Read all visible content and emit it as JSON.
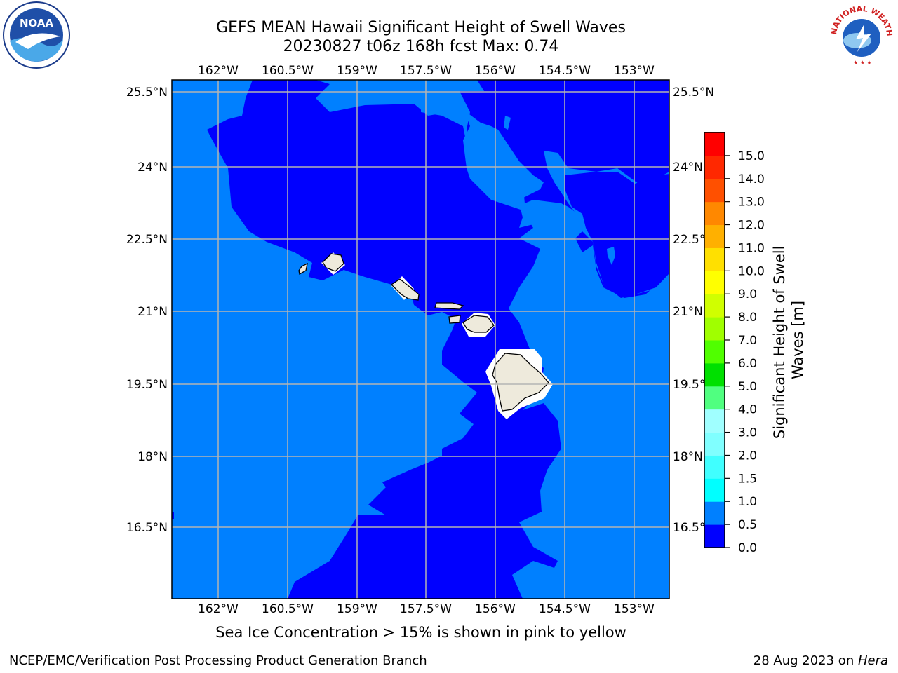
{
  "header": {
    "title_line1": "GEFS MEAN Hawaii Significant Height of Swell Waves",
    "title_line2": "20230827 t06z 168h fcst   Max: 0.74"
  },
  "logos": {
    "left": {
      "icon": "noaa-logo-icon",
      "text": "NOAA"
    },
    "right": {
      "icon": "nws-logo-icon",
      "text": "NATIONAL WEATHER SERVICE"
    }
  },
  "map": {
    "lon_ticks": [
      "162°W",
      "160.5°W",
      "159°W",
      "157.5°W",
      "156°W",
      "154.5°W",
      "153°W"
    ],
    "lat_ticks": [
      "25.5°N",
      "24°N",
      "22.5°N",
      "21°N",
      "19.5°N",
      "18°N",
      "16.5°N"
    ],
    "colors": {
      "light_blue": "#0080ff",
      "dark_blue": "#0000ff",
      "land": "#eeeadc",
      "grid": "#b4b4b4"
    }
  },
  "colorbar": {
    "label": "Significant Height of Swell Waves [m]",
    "ticks": [
      "0.0",
      "0.5",
      "1.0",
      "1.5",
      "2.0",
      "3.0",
      "4.0",
      "5.0",
      "6.0",
      "7.0",
      "8.0",
      "9.0",
      "10.0",
      "11.0",
      "12.0",
      "13.0",
      "14.0",
      "15.0"
    ],
    "colors": [
      "#0000ff",
      "#0080ff",
      "#00ffff",
      "#40ffff",
      "#80ffff",
      "#a0ffff",
      "#50ff80",
      "#00e000",
      "#50ff00",
      "#a0ff00",
      "#d0ff00",
      "#ffff00",
      "#ffe000",
      "#ffb000",
      "#ff8800",
      "#ff5000",
      "#ff2800",
      "#ff0000"
    ]
  },
  "footer": {
    "note": "Sea Ice Concentration > 15% is shown in pink to yellow",
    "left": "NCEP/EMC/Verification Post Processing Product Generation Branch",
    "right_date": "28 Aug 2023 on ",
    "right_machine": "Hera"
  }
}
